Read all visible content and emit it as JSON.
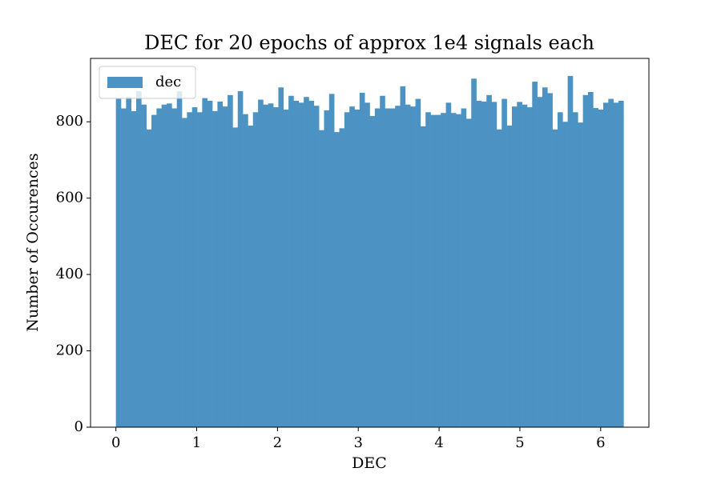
{
  "chart_data": {
    "type": "histogram",
    "title": "DEC for 20 epochs of approx 1e4 signals each",
    "xlabel": "DEC",
    "ylabel": "Number of Occurences",
    "bins": [
      0,
      0.0628,
      0.1257,
      0.1885,
      0.2513,
      0.3142,
      0.377,
      0.4398,
      0.5027,
      0.5655,
      0.6283,
      0.6912,
      0.754,
      0.8168,
      0.8796,
      0.9425,
      1.0053,
      1.0681,
      1.131,
      1.1938,
      1.2566,
      1.3195,
      1.3823,
      1.4451,
      1.508,
      1.5708,
      1.6336,
      1.6965,
      1.7593,
      1.8221,
      1.885,
      1.9478,
      2.0106,
      2.0735,
      2.1363,
      2.1991,
      2.2619,
      2.3248,
      2.3876,
      2.4504,
      2.5133,
      2.5761,
      2.6389,
      2.7018,
      2.7646,
      2.8274,
      2.8903,
      2.9531,
      3.0159,
      3.0788,
      3.1416,
      3.2044,
      3.2673,
      3.3301,
      3.3929,
      3.4558,
      3.5186,
      3.5814,
      3.6442,
      3.7071,
      3.7699,
      3.8327,
      3.8956,
      3.9584,
      4.0212,
      4.0841,
      4.1469,
      4.2097,
      4.2726,
      4.3354,
      4.3982,
      4.4611,
      4.5239,
      4.5867,
      4.6496,
      4.7124,
      4.7752,
      4.8381,
      4.9009,
      4.9637,
      5.0265,
      5.0894,
      5.1522,
      5.215,
      5.2779,
      5.3407,
      5.4035,
      5.4664,
      5.5292,
      5.592,
      5.6549,
      5.7177,
      5.7805,
      5.8434,
      5.9062,
      5.969,
      6.0319,
      6.0947,
      6.1575,
      6.2204,
      6.2832
    ],
    "series": [
      {
        "name": "dec",
        "color": "#4c92c3",
        "values": [
          860,
          835,
          865,
          828,
          880,
          845,
          780,
          818,
          835,
          845,
          848,
          835,
          880,
          810,
          825,
          838,
          825,
          862,
          855,
          828,
          853,
          840,
          870,
          785,
          880,
          820,
          790,
          825,
          858,
          845,
          848,
          838,
          890,
          832,
          868,
          855,
          850,
          865,
          855,
          842,
          778,
          830,
          873,
          773,
          783,
          825,
          840,
          832,
          876,
          850,
          815,
          835,
          868,
          835,
          835,
          842,
          893,
          845,
          840,
          860,
          788,
          825,
          818,
          818,
          823,
          850,
          823,
          820,
          835,
          808,
          913,
          855,
          853,
          870,
          852,
          780,
          860,
          790,
          840,
          852,
          845,
          838,
          905,
          865,
          890,
          875,
          780,
          825,
          800,
          920,
          825,
          798,
          870,
          878,
          836,
          832,
          850,
          860,
          850,
          855
        ]
      }
    ],
    "xlim": [
      -0.314,
      6.597
    ],
    "ylim": [
      0,
      966
    ],
    "xticks": [
      0,
      1,
      2,
      3,
      4,
      5,
      6
    ],
    "yticks": [
      0,
      200,
      400,
      600,
      800
    ],
    "grid": false,
    "legend": "upper left"
  }
}
